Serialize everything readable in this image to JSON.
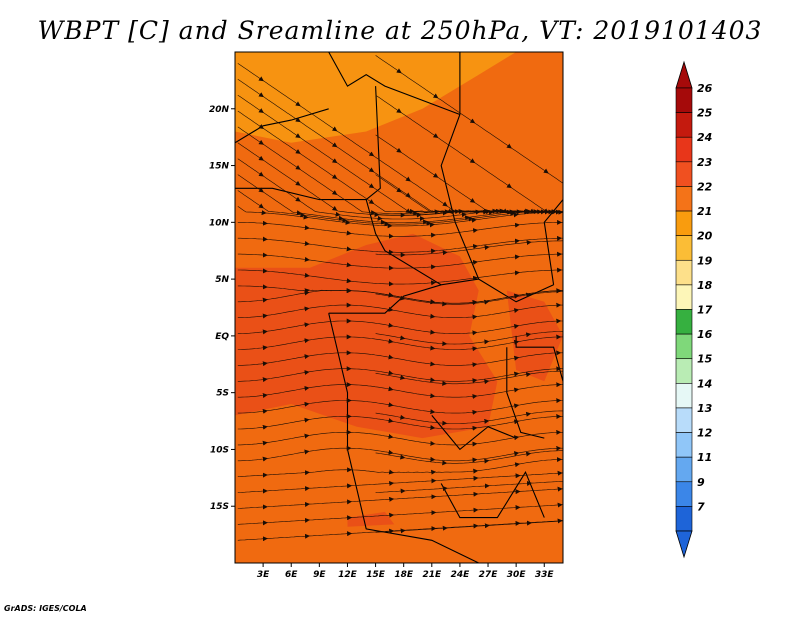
{
  "title": "WBPT [C] and Sreamline at 250hPa, VT: 2019101403",
  "credit": "GrADS: IGES/COLA",
  "map": {
    "lon_range": [
      0,
      35
    ],
    "lat_range": [
      -20,
      25
    ],
    "lat_ticks": [
      {
        "value": 20,
        "label": "20N"
      },
      {
        "value": 15,
        "label": "15N"
      },
      {
        "value": 10,
        "label": "10N"
      },
      {
        "value": 5,
        "label": "5N"
      },
      {
        "value": 0,
        "label": "EQ"
      },
      {
        "value": -5,
        "label": "5S"
      },
      {
        "value": -10,
        "label": "10S"
      },
      {
        "value": -15,
        "label": "15S"
      }
    ],
    "lon_ticks": [
      {
        "value": 3,
        "label": "3E"
      },
      {
        "value": 6,
        "label": "6E"
      },
      {
        "value": 9,
        "label": "9E"
      },
      {
        "value": 12,
        "label": "12E"
      },
      {
        "value": 15,
        "label": "15E"
      },
      {
        "value": 18,
        "label": "18E"
      },
      {
        "value": 21,
        "label": "21E"
      },
      {
        "value": 24,
        "label": "24E"
      },
      {
        "value": 27,
        "label": "27E"
      },
      {
        "value": 30,
        "label": "30E"
      },
      {
        "value": 33,
        "label": "33E"
      }
    ],
    "colors": {
      "base": "#f06a10",
      "warm": "#e8481a",
      "cool": "#f9a112",
      "streamline": "#1a0d05",
      "border": "#000000"
    }
  },
  "colorbar": {
    "labels": [
      "26",
      "25",
      "24",
      "23",
      "22",
      "21",
      "20",
      "19",
      "18",
      "17",
      "16",
      "15",
      "14",
      "13",
      "12",
      "11",
      "9",
      "7"
    ],
    "colors": [
      "#a50a0a",
      "#c41a0e",
      "#e8361a",
      "#f05020",
      "#f47318",
      "#f99c0e",
      "#fbbd36",
      "#fde08a",
      "#fdf6b8",
      "#36b040",
      "#7fd87a",
      "#b9ecb4",
      "#e6f8f6",
      "#b8dcfa",
      "#90c6f8",
      "#64a8f0",
      "#3b86e8",
      "#1e64d8"
    ],
    "top_arrow_color": "#a50a0a",
    "bottom_arrow_color": "#1e64d8"
  }
}
